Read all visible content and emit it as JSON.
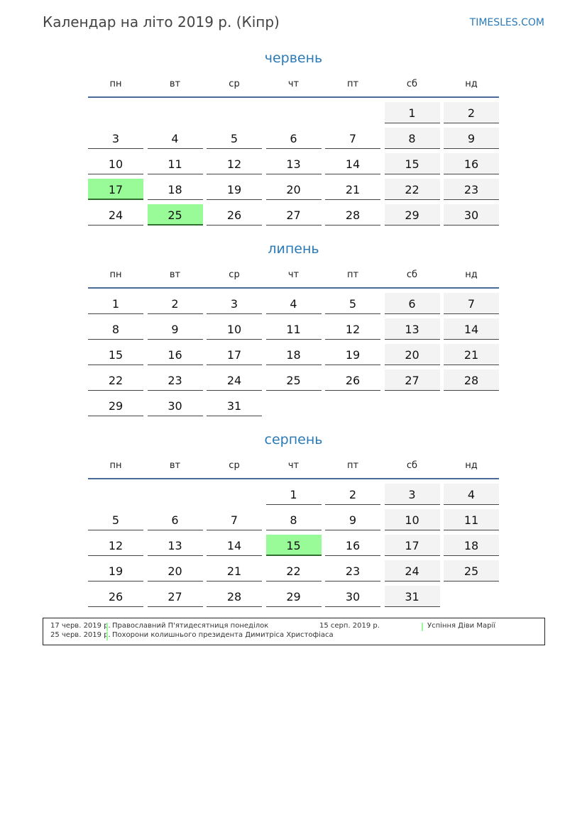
{
  "header": {
    "title": "Календар на літо 2019 р. (Кіпр)",
    "site": "TIMESLES.COM"
  },
  "colors": {
    "accent": "#2a7ab8",
    "holiday": "#98fb98",
    "weekend": "#f3f3f3"
  },
  "weekdays": [
    "пн",
    "вт",
    "ср",
    "чт",
    "пт",
    "сб",
    "нд"
  ],
  "months": [
    {
      "name": "червень",
      "weeks": [
        [
          null,
          null,
          null,
          null,
          null,
          1,
          2
        ],
        [
          3,
          4,
          5,
          6,
          7,
          8,
          9
        ],
        [
          10,
          11,
          12,
          13,
          14,
          15,
          16
        ],
        [
          17,
          18,
          19,
          20,
          21,
          22,
          23
        ],
        [
          24,
          25,
          26,
          27,
          28,
          29,
          30
        ]
      ],
      "holidays": [
        17,
        25
      ]
    },
    {
      "name": "липень",
      "weeks": [
        [
          1,
          2,
          3,
          4,
          5,
          6,
          7
        ],
        [
          8,
          9,
          10,
          11,
          12,
          13,
          14
        ],
        [
          15,
          16,
          17,
          18,
          19,
          20,
          21
        ],
        [
          22,
          23,
          24,
          25,
          26,
          27,
          28
        ],
        [
          29,
          30,
          31,
          null,
          null,
          null,
          null
        ]
      ],
      "holidays": []
    },
    {
      "name": "серпень",
      "weeks": [
        [
          null,
          null,
          null,
          1,
          2,
          3,
          4
        ],
        [
          5,
          6,
          7,
          8,
          9,
          10,
          11
        ],
        [
          12,
          13,
          14,
          15,
          16,
          17,
          18
        ],
        [
          19,
          20,
          21,
          22,
          23,
          24,
          25
        ],
        [
          26,
          27,
          28,
          29,
          30,
          31,
          null
        ]
      ],
      "holidays": [
        15
      ]
    }
  ],
  "legend": [
    {
      "date": "17 черв. 2019 р.",
      "name": "Православний П'ятидесятниця понеділок"
    },
    {
      "date": "25 черв. 2019 р.",
      "name": "Похорони колишнього президента Димитріса Христофіаса"
    },
    {
      "date": "15 серп. 2019 р.",
      "name": "Успіння Діви Марії"
    }
  ]
}
